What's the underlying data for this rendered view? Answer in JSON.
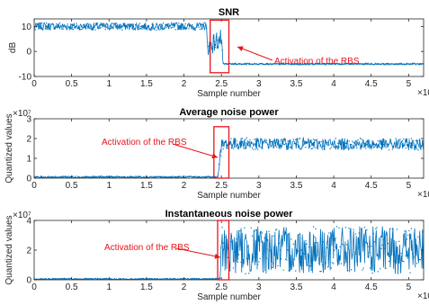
{
  "colors": {
    "series": "#0072bd",
    "annotation": "#e8141b",
    "axis": "#262626",
    "grid": "#000000"
  },
  "chart_data": [
    {
      "type": "line",
      "title": "SNR",
      "xlabel": "Sample number",
      "ylabel": "dB",
      "x_multiplier": "×10",
      "y_multiplier": "",
      "xlim": [
        0,
        5.2
      ],
      "ylim": [
        -10,
        13
      ],
      "xticks": [
        "0",
        "0.5",
        "1",
        "1.5",
        "2",
        "2.5",
        "3",
        "3.5",
        "4",
        "4.5",
        "5"
      ],
      "yticks": [
        "-10",
        "0",
        "10"
      ],
      "ytick_values": [
        -10,
        0,
        10
      ],
      "series": [
        {
          "x": [
            0,
            2.3,
            2.31,
            2.5,
            2.52,
            5.2
          ],
          "y": [
            10,
            10,
            2,
            5,
            -5,
            -5
          ],
          "noise": [
            1.5,
            1.5,
            4,
            4,
            0.3,
            0.3
          ]
        }
      ],
      "annotation": {
        "text": "Activation of the RBS",
        "box_x": [
          2.35,
          2.6
        ],
        "box_y": [
          -8.5,
          12.5
        ]
      }
    },
    {
      "type": "line",
      "title": "Average noise power",
      "xlabel": "Sample number",
      "ylabel": "Quantized values",
      "x_multiplier": "×10",
      "y_multiplier": "×10⁷",
      "xlim": [
        0,
        5.2
      ],
      "ylim": [
        0,
        3
      ],
      "xticks": [
        "0",
        "0.5",
        "1",
        "1.5",
        "2",
        "2.5",
        "3",
        "3.5",
        "4",
        "4.5",
        "5"
      ],
      "yticks": [
        "0",
        "1",
        "2",
        "3"
      ],
      "ytick_values": [
        0,
        1,
        2,
        3
      ],
      "series": [
        {
          "x": [
            0,
            2.45,
            2.5,
            2.55,
            5.2
          ],
          "y": [
            0.05,
            0.05,
            1.6,
            1.75,
            1.7
          ],
          "noise": [
            0.05,
            0.05,
            0.4,
            0.3,
            0.3
          ]
        }
      ],
      "annotation": {
        "text": "Activation of the RBS",
        "box_x": [
          2.4,
          2.6
        ],
        "box_y": [
          0,
          2.6
        ]
      }
    },
    {
      "type": "line",
      "title": "Instantaneous noise power",
      "xlabel": "Sample number",
      "ylabel": "Quantized values",
      "x_multiplier": "×10",
      "y_multiplier": "×10⁷",
      "xlim": [
        0,
        5.2
      ],
      "ylim": [
        0,
        4
      ],
      "xticks": [
        "0",
        "0.5",
        "1",
        "1.5",
        "2",
        "2.5",
        "3",
        "3.5",
        "4",
        "4.5",
        "5"
      ],
      "yticks": [
        "0",
        "2",
        "4"
      ],
      "ytick_values": [
        0,
        2,
        4
      ],
      "series": [
        {
          "x": [
            0,
            2.48,
            2.5,
            5.2
          ],
          "y": [
            0.05,
            0.05,
            2,
            2
          ],
          "noise": [
            0.05,
            0.05,
            1.6,
            1.6
          ]
        }
      ],
      "annotation": {
        "text": "Activation of the RBS",
        "box_x": [
          2.45,
          2.6
        ],
        "box_y": [
          0,
          4
        ]
      }
    }
  ]
}
